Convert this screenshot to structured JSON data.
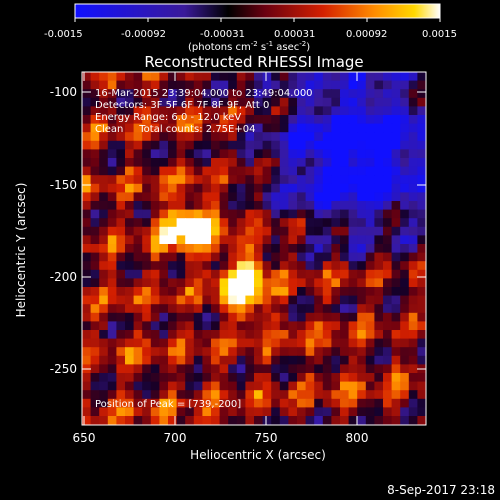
{
  "colorbar": {
    "ticks": [
      "-0.0015",
      "-0.00092",
      "-0.00031",
      "0.00031",
      "0.00092",
      "0.0015"
    ],
    "units_main": "(photons cm",
    "units_sup1": "-2",
    "units_mid": " s",
    "units_sup2": "-1",
    "units_tail": " asec",
    "units_sup3": "-2",
    "units_close": ")"
  },
  "title": "Reconstructed RHESSI Image",
  "info": {
    "time": "16-Mar-2015 23:39:04.000 to 23:49:04.000",
    "detectors": "Detectors: 3F 5F 6F 7F 8F 9F, Att 0",
    "energy": "Energy Range: 6.0 - 12.0 keV",
    "clean": "Clean     Total counts: 2.75E+04",
    "peak": "Position of Peak = [739,-200]"
  },
  "axes": {
    "xlabel": "Heliocentric X (arcsec)",
    "ylabel": "Heliocentric Y (arcsec)",
    "xticks": [
      "650",
      "700",
      "750",
      "800"
    ],
    "yticks": [
      "-100",
      "-150",
      "-200",
      "-250"
    ],
    "xrange": [
      648,
      838
    ],
    "yrange": [
      -283,
      -88
    ]
  },
  "footer": {
    "date": "8-Sep-2017 23:18"
  }
}
